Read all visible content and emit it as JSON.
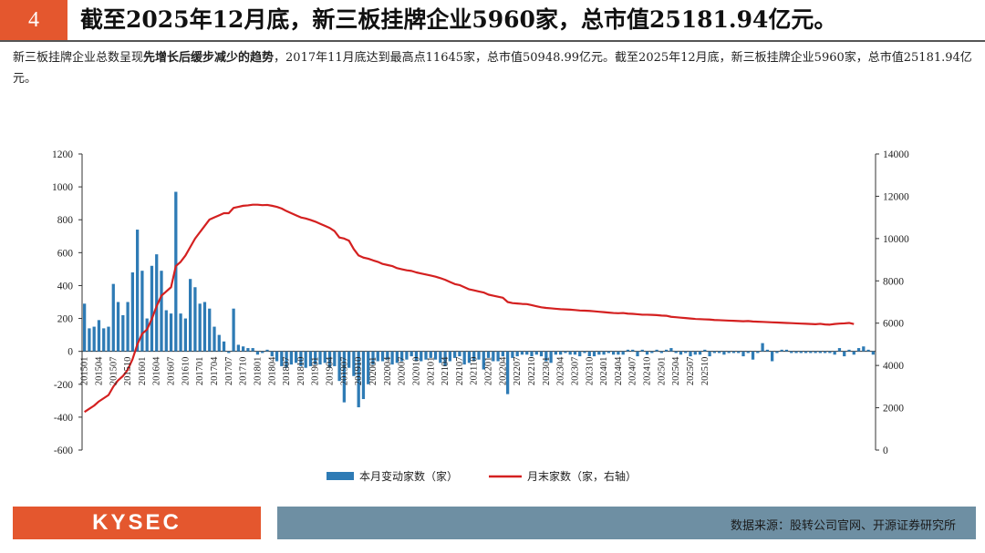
{
  "header": {
    "number": "4",
    "title": "截至2025年12月底，新三板挂牌企业5960家，总市值25181.94亿元。"
  },
  "summary": {
    "part1": "新三板挂牌企业总数呈现",
    "emphasis": "先增长后缓步减少的趋势",
    "part2": "，2017年11月底达到最高点11645家，总市值50948.99亿元。截至2025年12月底，新三板挂牌企业5960家，总市值25181.94亿元。"
  },
  "footer": {
    "logo": "KYSEC",
    "source": "数据来源：股转公司官网、开源证券研究所"
  },
  "colors": {
    "accent": "#e4572e",
    "bar": "#2e7bb5",
    "line": "#d42020",
    "footer_bar": "#6e8fa3"
  },
  "chart_data": {
    "type": "bar+line",
    "left_axis": {
      "min": -600,
      "max": 1200,
      "ticks": [
        -600,
        -400,
        -200,
        0,
        200,
        400,
        600,
        800,
        1000,
        1200
      ]
    },
    "right_axis": {
      "min": 0,
      "max": 14000,
      "ticks": [
        0,
        2000,
        4000,
        6000,
        8000,
        10000,
        12000,
        14000
      ]
    },
    "tick_labels": [
      "201501",
      "201504",
      "201507",
      "201510",
      "201601",
      "201604",
      "201607",
      "201610",
      "201701",
      "201704",
      "201707",
      "201710",
      "201801",
      "201804",
      "201807",
      "201810",
      "201901",
      "201904",
      "201907",
      "201910",
      "202001",
      "202004",
      "202007",
      "202010",
      "202101",
      "202104",
      "202107",
      "202110",
      "202201",
      "202204",
      "202207",
      "202210",
      "202301",
      "202304",
      "202307",
      "202310",
      "202401",
      "202404",
      "202407",
      "202410",
      "202501",
      "202504",
      "202507",
      "202510"
    ],
    "series": [
      {
        "name": "本月变动家数（家）",
        "axis": "left",
        "type": "bar",
        "values": [
          290,
          140,
          150,
          190,
          140,
          150,
          410,
          300,
          220,
          300,
          480,
          740,
          490,
          200,
          520,
          590,
          490,
          250,
          230,
          970,
          230,
          200,
          440,
          390,
          290,
          300,
          260,
          150,
          100,
          60,
          -10,
          260,
          40,
          30,
          20,
          20,
          -20,
          -10,
          10,
          -30,
          -60,
          -90,
          -100,
          -80,
          -70,
          -90,
          -100,
          -90,
          -80,
          -80,
          -70,
          -100,
          -90,
          -180,
          -310,
          -100,
          -150,
          -340,
          -290,
          -200,
          -80,
          -60,
          -60,
          -50,
          -80,
          -70,
          -60,
          -50,
          -30,
          -60,
          -60,
          -50,
          -40,
          -50,
          -70,
          -90,
          -60,
          -40,
          -30,
          -80,
          -70,
          -60,
          -50,
          -110,
          -40,
          -60,
          -60,
          -30,
          -260,
          -40,
          -30,
          -20,
          -20,
          -30,
          -20,
          -30,
          -60,
          -70,
          -20,
          -20,
          -10,
          -20,
          -20,
          -30,
          -10,
          -30,
          -30,
          -20,
          -20,
          -10,
          -20,
          -20,
          -20,
          10,
          10,
          -30,
          10,
          -20,
          -10,
          10,
          -10,
          10,
          20,
          -10,
          -20,
          -10,
          -30,
          -20,
          -20,
          10,
          -30,
          -10,
          -10,
          -20,
          -10,
          -10,
          -10,
          -30,
          -10,
          -50,
          -10,
          50,
          10,
          -60,
          -10,
          10,
          10,
          -10,
          -10,
          -10,
          -10,
          -10,
          -10,
          -10,
          -10,
          -10,
          -20,
          20,
          -30,
          10,
          -20,
          20,
          30,
          10,
          -20
        ]
      },
      {
        "name": "月末家数（家，右轴）",
        "axis": "right",
        "type": "line",
        "values": [
          1800,
          1950,
          2100,
          2300,
          2450,
          2600,
          3000,
          3300,
          3500,
          3800,
          4300,
          5000,
          5500,
          5700,
          6200,
          6800,
          7300,
          7500,
          7700,
          8700,
          8900,
          9200,
          9600,
          10000,
          10300,
          10600,
          10900,
          11000,
          11100,
          11200,
          11200,
          11450,
          11500,
          11550,
          11570,
          11600,
          11600,
          11580,
          11590,
          11550,
          11500,
          11420,
          11300,
          11200,
          11100,
          11000,
          10950,
          10880,
          10800,
          10700,
          10600,
          10500,
          10350,
          10050,
          10000,
          9900,
          9500,
          9200,
          9100,
          9050,
          8970,
          8900,
          8800,
          8750,
          8700,
          8600,
          8550,
          8500,
          8470,
          8400,
          8350,
          8300,
          8250,
          8200,
          8130,
          8050,
          7950,
          7850,
          7800,
          7700,
          7600,
          7550,
          7500,
          7450,
          7350,
          7300,
          7250,
          7200,
          7000,
          6950,
          6930,
          6910,
          6900,
          6850,
          6800,
          6750,
          6720,
          6700,
          6680,
          6660,
          6650,
          6640,
          6620,
          6600,
          6590,
          6580,
          6560,
          6540,
          6520,
          6500,
          6480,
          6470,
          6480,
          6450,
          6440,
          6420,
          6400,
          6400,
          6390,
          6380,
          6360,
          6350,
          6300,
          6280,
          6260,
          6240,
          6220,
          6200,
          6190,
          6180,
          6170,
          6150,
          6140,
          6130,
          6120,
          6110,
          6100,
          6090,
          6100,
          6080,
          6070,
          6060,
          6050,
          6040,
          6030,
          6020,
          6010,
          6000,
          5990,
          5980,
          5970,
          5960,
          5950,
          5970,
          5940,
          5930,
          5960,
          5980,
          5990,
          6010,
          5960
        ]
      }
    ]
  }
}
